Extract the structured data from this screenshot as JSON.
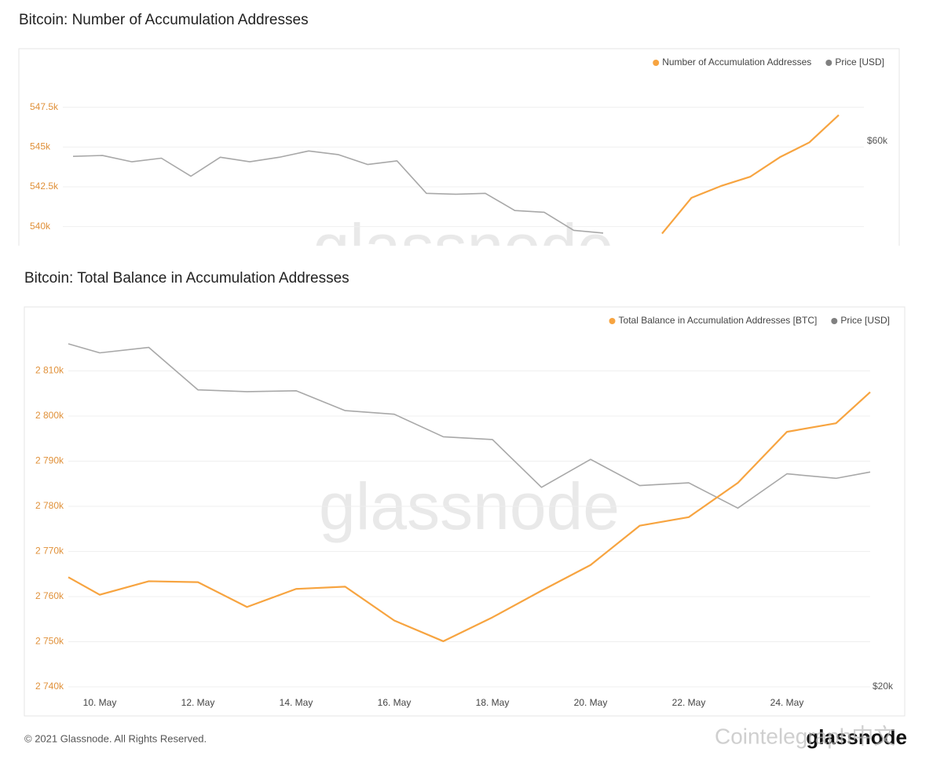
{
  "chart_data": [
    {
      "type": "line",
      "title": "Bitcoin: Number of Accumulation Addresses",
      "watermark": "glassnode",
      "categories": [
        null,
        null,
        null,
        null,
        null,
        null,
        null,
        null,
        null,
        null,
        null,
        null,
        null,
        null,
        null,
        null,
        null,
        null,
        null,
        null,
        null,
        null,
        null,
        null,
        null,
        null,
        null
      ],
      "series": [
        {
          "name": "Number of Accumulation Addresses",
          "color": "#f7a440",
          "values": [
            null,
            null,
            null,
            null,
            null,
            null,
            null,
            null,
            null,
            null,
            null,
            null,
            null,
            null,
            null,
            null,
            null,
            null,
            null,
            null,
            539560,
            541810,
            542550,
            543140,
            544360,
            545290,
            547010
          ]
        },
        {
          "name": "Price [USD]",
          "color": "#a8a8a8",
          "legend_color": "#808080",
          "axis": "y2",
          "values": [
            58300,
            58400,
            57700,
            58100,
            56100,
            58200,
            57700,
            58200,
            58900,
            58500,
            57400,
            57800,
            54200,
            54100,
            54200,
            52300,
            52100,
            50100,
            49800,
            null,
            null,
            null,
            null,
            null,
            null,
            null,
            null
          ]
        }
      ],
      "ylim": [
        538800,
        549800
      ],
      "yticks": [
        {
          "value": 540000,
          "label": "540k"
        },
        {
          "value": 542500,
          "label": "542.5k"
        },
        {
          "value": 545000,
          "label": "545k"
        },
        {
          "value": 547500,
          "label": "547.5k"
        }
      ],
      "y2lim": [
        48400,
        67800
      ],
      "y2ticks": [
        {
          "value": 60000,
          "label": "$60k"
        }
      ],
      "grid": true,
      "legend": "top-right"
    },
    {
      "type": "line",
      "title": "Bitcoin: Total Balance in Accumulation Addresses",
      "watermark": "glassnode",
      "categories": [
        null,
        "10. May",
        null,
        "12. May",
        null,
        "14. May",
        null,
        "16. May",
        null,
        "18. May",
        null,
        "20. May",
        null,
        "22. May",
        null,
        "24. May",
        null,
        null
      ],
      "series": [
        {
          "name": "Total Balance in Accumulation Addresses [BTC]",
          "color": "#f7a440",
          "values": [
            2764300,
            2760400,
            2763400,
            2763200,
            2757700,
            2761700,
            2762200,
            2754700,
            2750100,
            2755400,
            2761300,
            2767000,
            2775700,
            2777600,
            2785200,
            2796500,
            2798400,
            2805300
          ]
        },
        {
          "name": "Price [USD]",
          "color": "#a8a8a8",
          "legend_color": "#808080",
          "axis": "y2",
          "values": [
            58000,
            57000,
            57600,
            52900,
            52700,
            52800,
            50600,
            50200,
            47700,
            47400,
            42100,
            45200,
            42300,
            42600,
            39800,
            43600,
            43100,
            43800
          ]
        }
      ],
      "ylim": [
        2740000,
        2820000
      ],
      "yticks": [
        {
          "value": 2740000,
          "label": "2 740k"
        },
        {
          "value": 2750000,
          "label": "2 750k"
        },
        {
          "value": 2760000,
          "label": "2 760k"
        },
        {
          "value": 2770000,
          "label": "2 770k"
        },
        {
          "value": 2780000,
          "label": "2 780k"
        },
        {
          "value": 2790000,
          "label": "2 790k"
        },
        {
          "value": 2800000,
          "label": "2 800k"
        },
        {
          "value": 2810000,
          "label": "2 810k"
        }
      ],
      "y2lim": [
        20000,
        60000
      ],
      "y2ticks": [
        {
          "value": 20000,
          "label": "$20k"
        }
      ],
      "grid": true,
      "legend": "top-right"
    }
  ],
  "footer": {
    "copyright": "© 2021 Glassnode. All Rights Reserved.",
    "logo": "glassnode",
    "overlay": "Cointelegraph中文"
  }
}
